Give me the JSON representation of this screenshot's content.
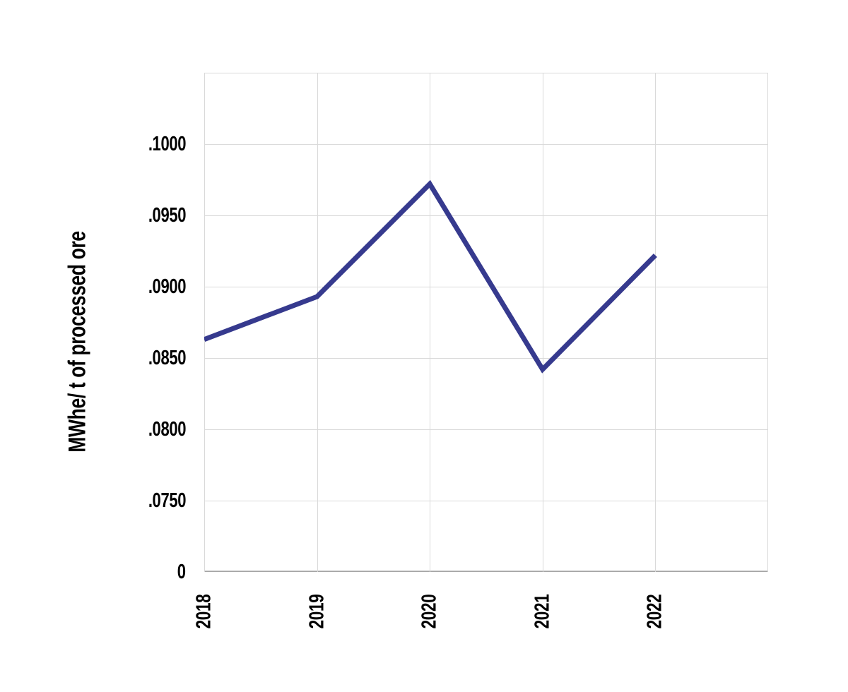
{
  "chart_data": {
    "type": "line",
    "title": "",
    "ylabel": "MWhe/ t of processed ore",
    "xlabel": "",
    "categories": [
      "2018",
      "2019",
      "2020",
      "2021",
      "2022"
    ],
    "series": [
      {
        "name": "MWhe per tonne of processed ore",
        "values": [
          0.0863,
          0.0893,
          0.0972,
          0.0842,
          0.0922
        ]
      }
    ],
    "y_tick_labels": [
      ".1000",
      ".0950",
      ".0900",
      ".0850",
      ".0800",
      ".0750",
      "0"
    ],
    "y_tick_values": [
      0.1,
      0.095,
      0.09,
      0.085,
      0.08,
      0.075,
      0
    ],
    "y_step_per_row": 0.005,
    "axis_break": "0 tick sits one gridline step below .0750 (truncated axis)",
    "grid": "horizontal and vertical gridlines on, boxed plot border",
    "legend": "none",
    "x_tick_rotation_deg": 90,
    "colors": {
      "line": "#363a8e",
      "gridline": "#d9d9d9",
      "axis_line": "#a6a6a6",
      "text": "#000000",
      "background": "#ffffff"
    }
  }
}
